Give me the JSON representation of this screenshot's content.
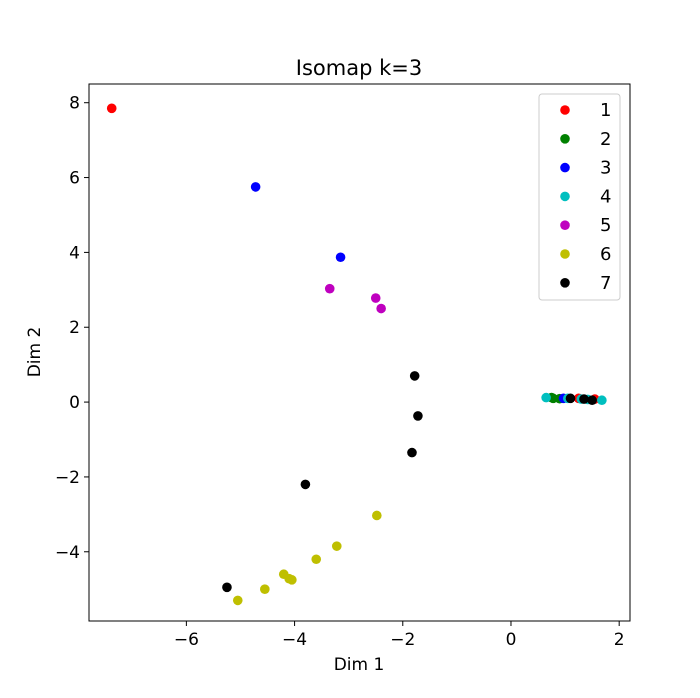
{
  "chart_data": {
    "type": "scatter",
    "title": "Isomap k=3",
    "xlabel": "Dim 1",
    "ylabel": "Dim 2",
    "xlim": [
      -7.8,
      2.2
    ],
    "ylim": [
      -5.85,
      8.5
    ],
    "xticks": [
      -6,
      -4,
      -2,
      0,
      2
    ],
    "yticks": [
      -4,
      -2,
      0,
      2,
      4,
      6,
      8
    ],
    "xtick_labels": [
      "−6",
      "−4",
      "−2",
      "0",
      "2"
    ],
    "ytick_labels": [
      "−4",
      "−2",
      "0",
      "2",
      "4",
      "6",
      "8"
    ],
    "legend_position": "upper right",
    "series": [
      {
        "name": "1",
        "color": "#ff0000",
        "points": [
          [
            -7.38,
            7.85
          ],
          [
            1.55,
            0.08
          ],
          [
            1.25,
            0.1
          ]
        ]
      },
      {
        "name": "2",
        "color": "#008000",
        "points": [
          [
            0.75,
            0.12
          ],
          [
            0.78,
            0.1
          ],
          [
            0.9,
            0.09
          ]
        ]
      },
      {
        "name": "3",
        "color": "#0000ff",
        "points": [
          [
            -4.72,
            5.75
          ],
          [
            -3.15,
            3.87
          ],
          [
            0.97,
            0.1
          ]
        ]
      },
      {
        "name": "4",
        "color": "#00bfbf",
        "points": [
          [
            0.65,
            0.12
          ],
          [
            1.05,
            0.1
          ],
          [
            1.3,
            0.08
          ],
          [
            1.42,
            0.07
          ],
          [
            1.68,
            0.05
          ]
        ]
      },
      {
        "name": "5",
        "color": "#bf00bf",
        "points": [
          [
            -3.35,
            3.03
          ],
          [
            -2.5,
            2.78
          ],
          [
            -2.4,
            2.5
          ]
        ]
      },
      {
        "name": "6",
        "color": "#bfbf00",
        "points": [
          [
            -5.05,
            -5.3
          ],
          [
            -4.55,
            -5.0
          ],
          [
            -4.2,
            -4.6
          ],
          [
            -4.1,
            -4.72
          ],
          [
            -4.05,
            -4.75
          ],
          [
            -3.6,
            -4.2
          ],
          [
            -3.22,
            -3.85
          ],
          [
            -2.48,
            -3.03
          ]
        ]
      },
      {
        "name": "7",
        "color": "#000000",
        "points": [
          [
            -5.25,
            -4.95
          ],
          [
            -3.8,
            -2.2
          ],
          [
            -1.83,
            -1.35
          ],
          [
            -1.78,
            0.7
          ],
          [
            -1.72,
            -0.37
          ],
          [
            1.1,
            0.1
          ],
          [
            1.35,
            0.08
          ],
          [
            1.5,
            0.05
          ]
        ]
      }
    ]
  }
}
